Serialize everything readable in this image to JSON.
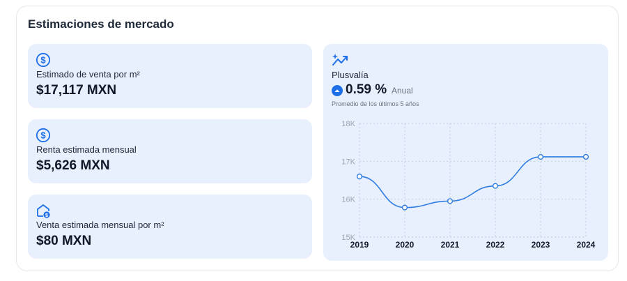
{
  "title": "Estimaciones de mercado",
  "stats": [
    {
      "icon": "dollar-circle-icon",
      "label": "Estimado de venta por m²",
      "value": "$17,117 MXN"
    },
    {
      "icon": "dollar-circle-icon",
      "label": "Renta estimada mensual",
      "value": "$5,626 MXN"
    },
    {
      "icon": "house-dollar-icon",
      "label": "Venta estimada mensual por m²",
      "value": "$80 MXN"
    }
  ],
  "plusvalia": {
    "icon": "trend-sparkle-icon",
    "label": "Plusvalía",
    "percent": "0.59 %",
    "period": "Anual",
    "note": "Promedio de los últimos 5 años"
  },
  "colors": {
    "accent": "#1d6fe8",
    "panel": "#e8f0fd",
    "line": "#2f7de1",
    "grid": "#c9d3e3"
  },
  "chart_data": {
    "type": "line",
    "x": [
      "2019",
      "2020",
      "2021",
      "2022",
      "2023",
      "2024"
    ],
    "series": [
      {
        "values": [
          16600,
          15780,
          15950,
          16350,
          17117,
          17117
        ]
      }
    ],
    "ylim": [
      15000,
      18000
    ],
    "yticks": [
      15000,
      16000,
      17000,
      18000
    ],
    "ytick_labels": [
      "15K",
      "16K",
      "17K",
      "18K"
    ],
    "grid": true
  }
}
